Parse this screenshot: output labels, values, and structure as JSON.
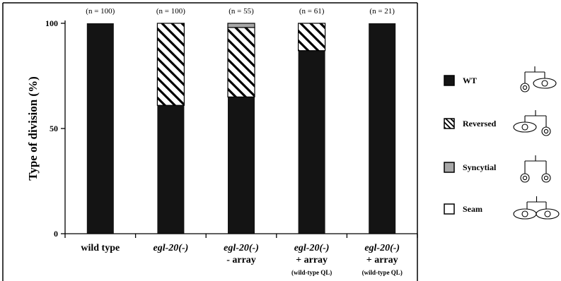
{
  "chart_data": {
    "type": "bar",
    "stacked": true,
    "ylabel": "Type of division (%)",
    "ylim": [
      0,
      100
    ],
    "yticks": [
      0,
      50,
      100
    ],
    "categories": [
      {
        "lines": [
          {
            "text": "wild type",
            "italic": false
          }
        ],
        "n": "(n = 100)"
      },
      {
        "lines": [
          {
            "text": "egl-20(-)",
            "italic": true
          }
        ],
        "n": "(n = 100)"
      },
      {
        "lines": [
          {
            "text": "egl-20(-)",
            "italic": true
          },
          {
            "text": "- array",
            "italic": false
          }
        ],
        "n": "(n = 55)"
      },
      {
        "lines": [
          {
            "text": "egl-20(-)",
            "italic": true
          },
          {
            "text": "+ array",
            "italic": false
          },
          {
            "text": "(wild-type QL)",
            "italic": false,
            "small": true
          }
        ],
        "n": "(n = 61)"
      },
      {
        "lines": [
          {
            "text": "egl-20(-)",
            "italic": true
          },
          {
            "text": "+ array",
            "italic": false
          },
          {
            "text": "(wild-type QL)",
            "italic": false,
            "small": true
          }
        ],
        "n": "(n = 21)"
      }
    ],
    "series": [
      {
        "name": "WT",
        "fill": "solid",
        "color": "#141414",
        "values": [
          100,
          61,
          65,
          87,
          100
        ]
      },
      {
        "name": "Reversed",
        "fill": "hatched",
        "color": "#ffffff",
        "values": [
          0,
          39,
          33,
          13,
          0
        ]
      },
      {
        "name": "Syncytial",
        "fill": "solid",
        "color": "#a8a8a8",
        "values": [
          0,
          0,
          2,
          0,
          0
        ]
      },
      {
        "name": "Seam",
        "fill": "solid",
        "color": "#ffffff",
        "values": [
          0,
          0,
          0,
          0,
          0
        ]
      }
    ],
    "legend_position": "right",
    "grid": false
  },
  "legend_icons": [
    "wt-division-icon",
    "reversed-division-icon",
    "syncytial-division-icon",
    "seam-division-icon"
  ]
}
